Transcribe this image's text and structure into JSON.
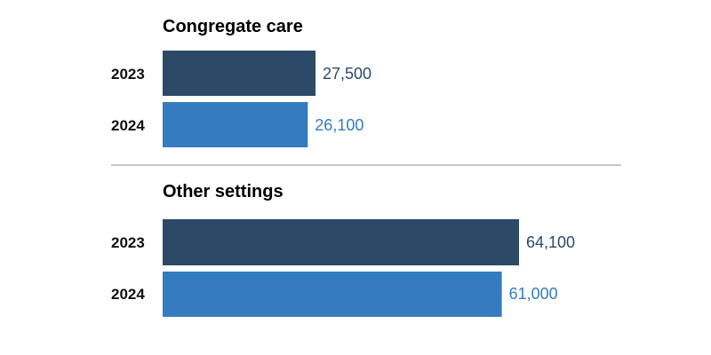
{
  "colors": {
    "year_2023": "#2c4a68",
    "year_2024": "#357bbf",
    "divider": "#8c8c8c"
  },
  "chart_data": [
    {
      "type": "bar",
      "orientation": "horizontal",
      "title": "Congregate care",
      "categories": [
        "2023",
        "2024"
      ],
      "values": [
        27500,
        26100
      ],
      "value_labels": [
        "27,500",
        "26,100"
      ],
      "xlim": [
        0,
        64100
      ]
    },
    {
      "type": "bar",
      "orientation": "horizontal",
      "title": "Other settings",
      "categories": [
        "2023",
        "2024"
      ],
      "values": [
        64100,
        61000
      ],
      "value_labels": [
        "64,100",
        "61,000"
      ],
      "xlim": [
        0,
        64100
      ]
    }
  ]
}
